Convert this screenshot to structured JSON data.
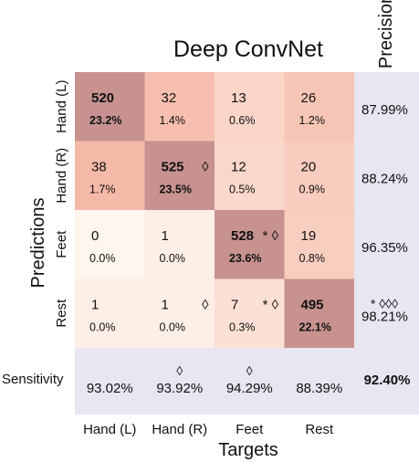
{
  "chart_data": {
    "type": "heatmap",
    "title": "Deep ConvNet",
    "xlabel": "Targets",
    "ylabel": "Predictions",
    "columns": [
      "Hand (L)",
      "Hand (R)",
      "Feet",
      "Rest"
    ],
    "rows": [
      "Hand (L)",
      "Hand (R)",
      "Feet",
      "Rest"
    ],
    "counts": [
      [
        520,
        32,
        13,
        26
      ],
      [
        38,
        525,
        12,
        20
      ],
      [
        0,
        1,
        528,
        19
      ],
      [
        1,
        1,
        7,
        495
      ]
    ],
    "percents": [
      [
        "23.2%",
        "1.4%",
        "0.6%",
        "1.2%"
      ],
      [
        "1.7%",
        "23.5%",
        "0.5%",
        "0.9%"
      ],
      [
        "0.0%",
        "0.0%",
        "23.6%",
        "0.8%"
      ],
      [
        "0.0%",
        "0.0%",
        "0.3%",
        "22.1%"
      ]
    ],
    "markers": [
      [
        "",
        "",
        "",
        ""
      ],
      [
        "",
        "◊",
        "",
        ""
      ],
      [
        "",
        "",
        "* ◊",
        ""
      ],
      [
        "",
        "◊",
        "* ◊",
        ""
      ]
    ],
    "precision_label": "Precision",
    "precision": [
      "87.99%",
      "88.24%",
      "96.35%",
      "98.21%"
    ],
    "precision_markers": [
      "",
      "",
      "",
      "* ◊◊◊"
    ],
    "sensitivity_label": "Sensitivity",
    "sensitivity": [
      "93.02%",
      "93.92%",
      "94.29%",
      "88.39%"
    ],
    "sensitivity_markers": [
      "",
      "◊",
      "◊",
      ""
    ],
    "overall_accuracy": "92.40%",
    "colors": {
      "diagonal": "#c7928f",
      "margin": "#e7e6f1",
      "cell_max": "#f5b9a8",
      "cell_min": "#fff6ee"
    }
  }
}
